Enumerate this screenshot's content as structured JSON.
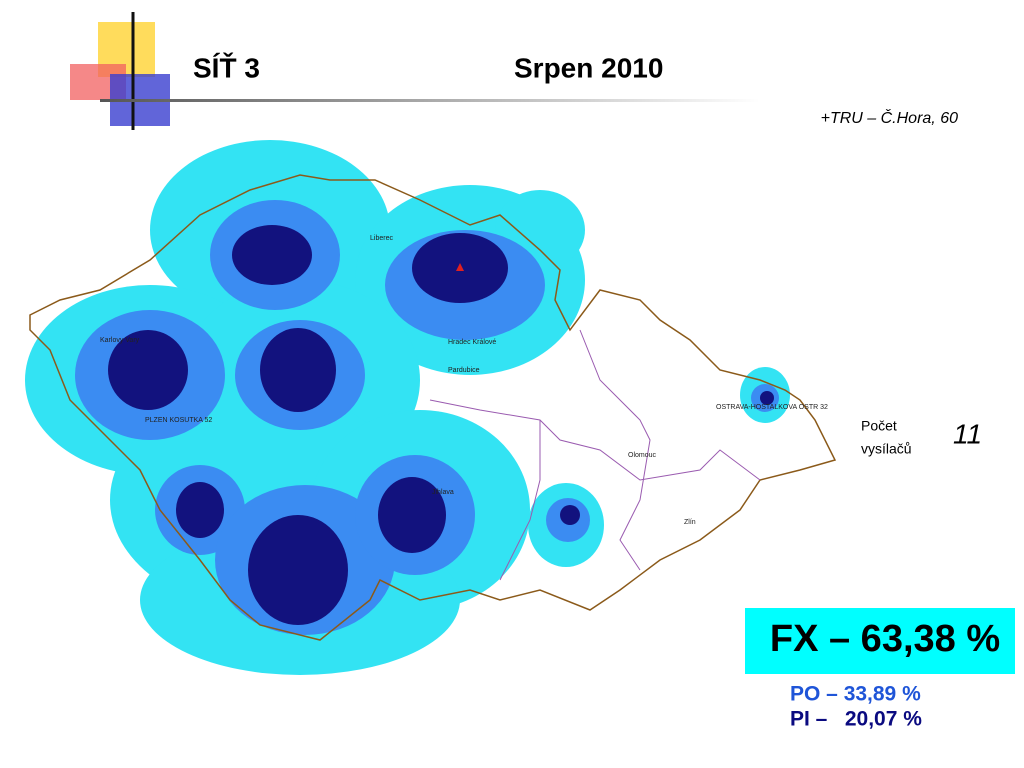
{
  "header": {
    "title": "SÍŤ 3",
    "date": "Srpen 2010"
  },
  "transmitter": "+TRU – Č.Hora, 60",
  "map": {
    "labels": [
      "Liberec",
      "Hradec Králové",
      "Pardubice",
      "Olomouc",
      "Zlín",
      "OSTRAVA-HOSTALKOVA OSTR 32",
      "Karlovy Vary",
      "PLZEN KOSUTKA 52",
      "Jihlava"
    ]
  },
  "count": {
    "label_line1": "Počet",
    "label_line2": "vysílačů",
    "value": 11
  },
  "coverage": {
    "fx": "FX – 63,38 %",
    "po": "PO – 33,89 %",
    "pi": "PI –   20,07 %"
  }
}
